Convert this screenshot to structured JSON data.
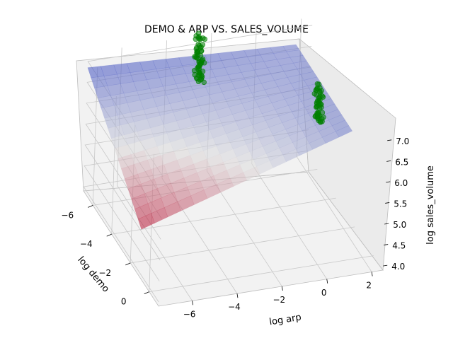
{
  "chart_data": {
    "type": "scatter3d",
    "title": "DEMO & ARP VS. SALES_VOLUME",
    "xlabel": "log arp",
    "ylabel": "log demo",
    "zlabel": "log sales_volume",
    "x_ticks": [
      "−6",
      "−4",
      "−2",
      "0",
      "2"
    ],
    "y_ticks": [
      "−6",
      "−4",
      "−2",
      "0"
    ],
    "z_ticks": [
      "4.0",
      "4.5",
      "5.0",
      "5.5",
      "6.0",
      "6.5",
      "7.0"
    ],
    "x_tick_values": [
      -6,
      -4,
      -2,
      0,
      2
    ],
    "y_tick_values": [
      -6,
      -4,
      -2,
      0
    ],
    "z_tick_values": [
      4.0,
      4.5,
      5.0,
      5.5,
      6.0,
      6.5,
      7.0
    ],
    "xlim": [
      -7.5,
      2.5
    ],
    "ylim": [
      -7,
      1
    ],
    "zlim": [
      3.9,
      7.2
    ],
    "grid": true,
    "surface": {
      "name": "fitted plane",
      "colormap": "coolwarm",
      "corners": {
        "arp_min_demo_min": 6.85,
        "arp_max_demo_min": 6.6,
        "arp_max_demo_max": 6.6,
        "arp_min_demo_max": 5.05
      }
    },
    "scatter_color": "#008000",
    "clusters": [
      {
        "arp": -2.5,
        "demo": -7.0,
        "sales_volume_range": [
          6.1,
          7.2
        ],
        "count": 60
      },
      {
        "arp": 1.7,
        "demo": -4.2,
        "sales_volume_range": [
          6.2,
          6.55
        ],
        "count": 20
      },
      {
        "arp": 1.7,
        "demo": -4.2,
        "sales_volume_range": [
          5.75,
          6.15
        ],
        "count": 30
      }
    ]
  }
}
